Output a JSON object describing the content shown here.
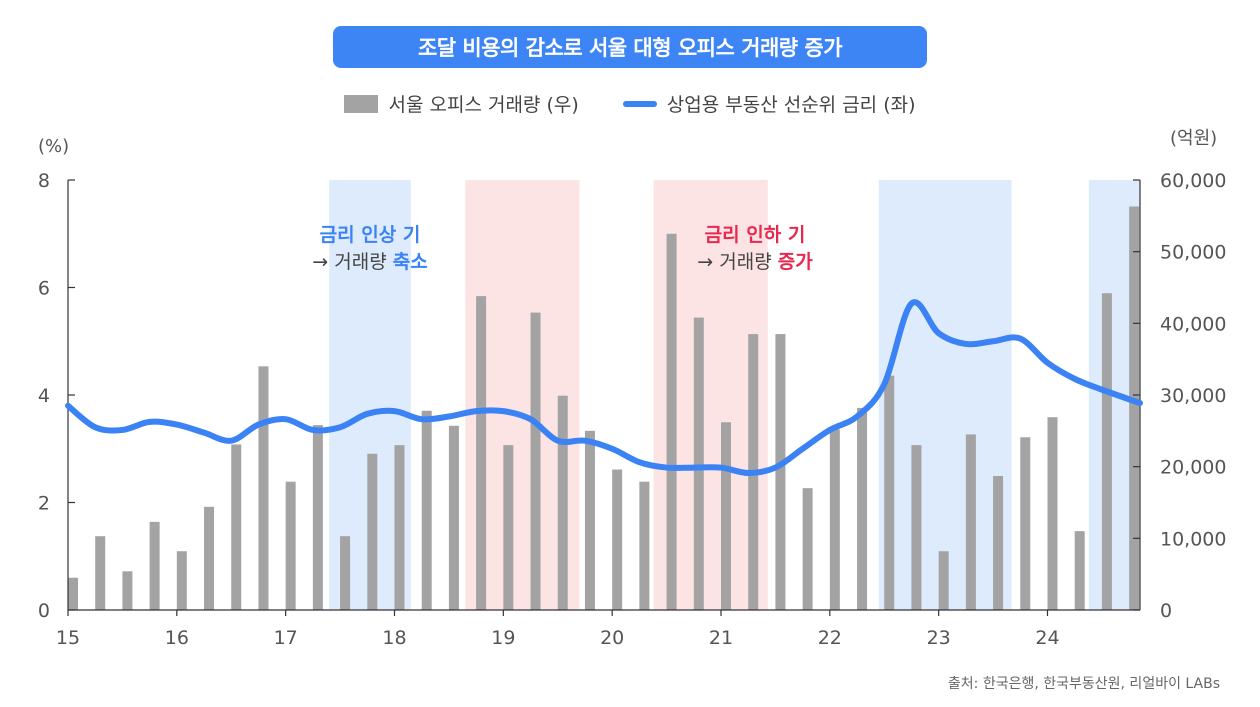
{
  "title": "조달 비용의 감소로 서울 대형 오피스 거래량 증가",
  "legend": {
    "bar": "서울 오피스 거래량 (우)",
    "line": "상업용 부동산 선순위 금리 (좌)"
  },
  "left_unit": "(%)",
  "right_unit": "(억원)",
  "source": "출처: 한국은행, 한국부동산원, 리얼바이 LABs",
  "annotations": {
    "hike": {
      "title": "금리 인상 기",
      "arrow": "→ 거래량 ",
      "emph": "축소"
    },
    "cut": {
      "title": "금리 인하 기",
      "arrow": "→ 거래량 ",
      "emph": "증가"
    }
  },
  "colors": {
    "bar": "#a3a3a3",
    "line": "#3b82f5",
    "hike": "#3b82f5",
    "cut": "#e8294f",
    "hike_band": "#deebfc",
    "cut_band": "#fde4e4"
  },
  "chart_data": {
    "type": "bar+line",
    "x_range": [
      15.0,
      24.85
    ],
    "x_ticks": [
      15,
      16,
      17,
      18,
      19,
      20,
      21,
      22,
      23,
      24
    ],
    "left_axis": {
      "ylim": [
        0,
        8
      ],
      "ticks": [
        "0",
        "2",
        "4",
        "6",
        "8"
      ]
    },
    "right_axis": {
      "ylim": [
        0,
        60000
      ],
      "ticks": [
        "0",
        "10,000",
        "20,000",
        "30,000",
        "40,000",
        "50,000",
        "60,000"
      ]
    },
    "bands": [
      {
        "kind": "hike",
        "from": 17.4,
        "to": 18.15
      },
      {
        "kind": "cut",
        "from": 18.65,
        "to": 19.7
      },
      {
        "kind": "cut",
        "from": 20.38,
        "to": 21.43
      },
      {
        "kind": "hike",
        "from": 22.45,
        "to": 23.67
      },
      {
        "kind": "hike",
        "from": 24.38,
        "to": 24.85
      }
    ],
    "series": [
      {
        "name": "서울 오피스 거래량 (우)",
        "axis": "right",
        "type": "bar",
        "x": [
          15.0,
          15.25,
          15.5,
          15.75,
          16.0,
          16.25,
          16.5,
          16.75,
          17.0,
          17.25,
          17.5,
          17.75,
          18.0,
          18.25,
          18.5,
          18.75,
          19.0,
          19.25,
          19.5,
          19.75,
          20.0,
          20.25,
          20.5,
          20.75,
          21.0,
          21.25,
          21.5,
          21.75,
          22.0,
          22.25,
          22.5,
          22.75,
          23.0,
          23.25,
          23.5,
          23.75,
          24.0,
          24.25,
          24.5,
          24.75
        ],
        "values": [
          4500,
          10300,
          5400,
          12300,
          8200,
          14400,
          23100,
          34000,
          17900,
          25800,
          10300,
          21800,
          23000,
          27800,
          25700,
          43800,
          23000,
          41500,
          29900,
          25000,
          19600,
          17900,
          52500,
          40800,
          26200,
          38500,
          38500,
          17000,
          25200,
          28200,
          32700,
          23000,
          8200,
          24500,
          18700,
          24100,
          26900,
          11000,
          44200,
          56300
        ]
      },
      {
        "name": "상업용 부동산 선순위 금리 (좌)",
        "axis": "left",
        "type": "line",
        "x": [
          15.0,
          15.25,
          15.5,
          15.75,
          16.0,
          16.25,
          16.5,
          16.75,
          17.0,
          17.25,
          17.5,
          17.75,
          18.0,
          18.25,
          18.5,
          18.75,
          19.0,
          19.25,
          19.5,
          19.75,
          20.0,
          20.25,
          20.5,
          20.75,
          21.0,
          21.25,
          21.5,
          21.75,
          22.0,
          22.25,
          22.5,
          22.75,
          23.0,
          23.25,
          23.5,
          23.75,
          24.0,
          24.25,
          24.5,
          24.85
        ],
        "values": [
          3.8,
          3.4,
          3.35,
          3.5,
          3.45,
          3.3,
          3.15,
          3.45,
          3.55,
          3.35,
          3.4,
          3.65,
          3.7,
          3.55,
          3.6,
          3.7,
          3.7,
          3.55,
          3.15,
          3.15,
          3.0,
          2.75,
          2.65,
          2.65,
          2.65,
          2.55,
          2.65,
          3.0,
          3.35,
          3.6,
          4.2,
          5.7,
          5.15,
          4.95,
          5.0,
          5.05,
          4.6,
          4.3,
          4.1,
          3.85
        ]
      }
    ]
  }
}
